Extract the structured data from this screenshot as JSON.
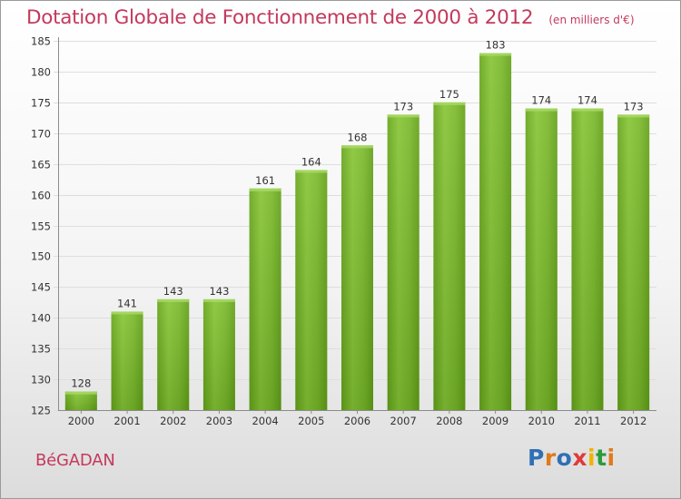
{
  "header": {
    "title": "Dotation Globale de Fonctionnement de 2000 à 2012",
    "subtitle": "(en milliers d'€)"
  },
  "footer": {
    "commune": "BéGADAN",
    "logo_text": "Proxiti",
    "logo_colors": [
      "#2f6fb6",
      "#e07a1b",
      "#2f6fb6",
      "#e03a3a",
      "#f0b400",
      "#2a9c3a",
      "#e07a1b"
    ]
  },
  "chart_data": {
    "type": "bar",
    "title": "Dotation Globale de Fonctionnement de 2000 à 2012",
    "subtitle": "(en milliers d'€)",
    "xlabel": "",
    "ylabel": "",
    "categories": [
      "2000",
      "2001",
      "2002",
      "2003",
      "2004",
      "2005",
      "2006",
      "2007",
      "2008",
      "2009",
      "2010",
      "2011",
      "2012"
    ],
    "values": [
      128,
      141,
      143,
      143,
      161,
      164,
      168,
      173,
      175,
      183,
      174,
      174,
      173
    ],
    "ylim": [
      125,
      185
    ],
    "yticks": [
      125,
      130,
      135,
      140,
      145,
      150,
      155,
      160,
      165,
      170,
      175,
      180,
      185
    ],
    "grid": true,
    "bar_color": "#7ab530"
  }
}
